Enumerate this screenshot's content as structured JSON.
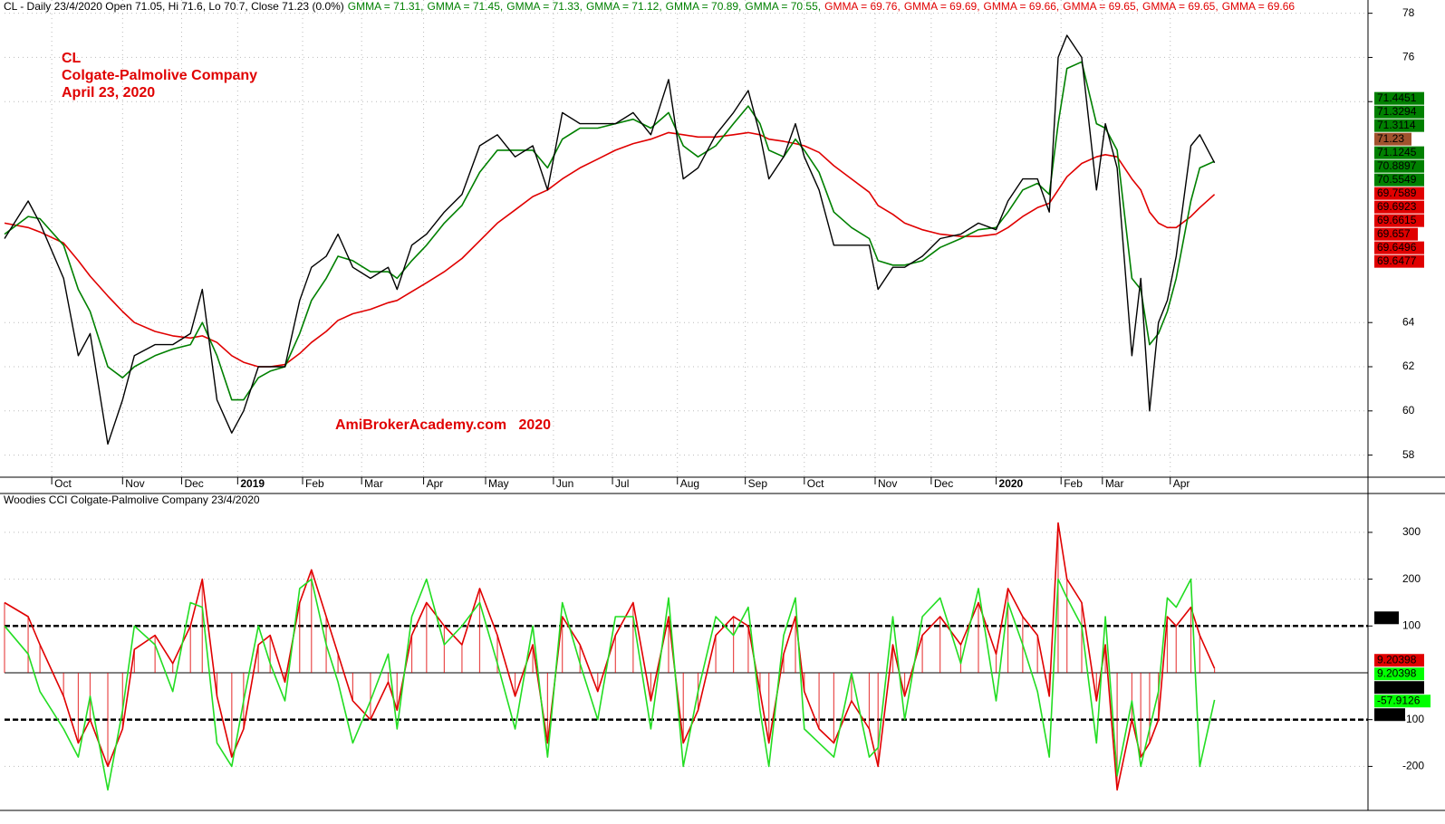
{
  "chart_data": [
    {
      "type": "line",
      "title": "CL - Daily 23/4/2020 Open 71.05, Hi 71.6, Lo 70.7, Close 71.23 (0.0%)",
      "header_items": [
        {
          "text": "GMMA = 71.31,",
          "color": "#008000"
        },
        {
          "text": "GMMA = 71.45,",
          "color": "#008000"
        },
        {
          "text": "GMMA = 71.33,",
          "color": "#008000"
        },
        {
          "text": "GMMA = 71.12,",
          "color": "#008000"
        },
        {
          "text": "GMMA = 70.89,",
          "color": "#008000"
        },
        {
          "text": "GMMA = 70.55,",
          "color": "#008000"
        },
        {
          "text": "GMMA = 69.76,",
          "color": "#e00000"
        },
        {
          "text": "GMMA = 69.69,",
          "color": "#e00000"
        },
        {
          "text": "GMMA = 69.66,",
          "color": "#e00000"
        },
        {
          "text": "GMMA = 69.65,",
          "color": "#e00000"
        },
        {
          "text": "GMMA = 69.65,",
          "color": "#e00000"
        },
        {
          "text": "GMMA = 69.66",
          "color": "#e00000"
        }
      ],
      "annotations": [
        "CL",
        "Colgate-Palmolive Company",
        "April 23, 2020"
      ],
      "watermark": "AmiBrokerAcademy.com   2020",
      "x": [
        0,
        8,
        12,
        20,
        25,
        29,
        35,
        40,
        44,
        51,
        57,
        63,
        67,
        72,
        77,
        81,
        86,
        90,
        95,
        100,
        104,
        109,
        113,
        118,
        124,
        130,
        133,
        138,
        143,
        149,
        155,
        161,
        167,
        173,
        179,
        184,
        189,
        195,
        201,
        207,
        213,
        219,
        225,
        230,
        235,
        241,
        247,
        252,
        256,
        259,
        264,
        268,
        271,
        276,
        281,
        287,
        293,
        296,
        301,
        305,
        311,
        317,
        324,
        330,
        336,
        340,
        345,
        350,
        354,
        357,
        360,
        365,
        370,
        373,
        377,
        382,
        385,
        388,
        391,
        394,
        397,
        402,
        405,
        410
      ],
      "series": [
        {
          "color": "#e00000",
          "values": [
            68.5,
            68.3,
            68.1,
            67.6,
            66.8,
            66.1,
            65.2,
            64.5,
            64,
            63.6,
            63.4,
            63.3,
            63.4,
            63.1,
            62.5,
            62.2,
            62,
            62,
            62.1,
            62.6,
            63.1,
            63.6,
            64.1,
            64.4,
            64.6,
            64.9,
            65,
            65.4,
            65.8,
            66.3,
            66.9,
            67.7,
            68.5,
            69.1,
            69.7,
            70,
            70.5,
            71,
            71.4,
            71.8,
            72.1,
            72.3,
            72.6,
            72.5,
            72.4,
            72.4,
            72.5,
            72.6,
            72.5,
            72.3,
            72.2,
            72.1,
            72,
            71.7,
            71.1,
            70.5,
            69.9,
            69.3,
            68.9,
            68.5,
            68.2,
            68,
            67.9,
            67.9,
            68,
            68.3,
            68.8,
            69.2,
            69.4,
            70,
            70.6,
            71.2,
            71.5,
            71.6,
            71.5,
            70.5,
            70,
            69,
            68.5,
            68.3,
            68.3,
            68.8,
            69.2,
            69.8
          ]
        },
        {
          "color": "#008000",
          "values": [
            68,
            68.8,
            68.7,
            67.5,
            65.5,
            64.5,
            62,
            61.5,
            62,
            62.5,
            62.8,
            63,
            64,
            62.5,
            60.5,
            60.5,
            61.5,
            61.8,
            62,
            63.5,
            65,
            66,
            67,
            66.8,
            66.3,
            66.3,
            66,
            66.8,
            67.5,
            68.5,
            69.3,
            70.8,
            71.8,
            71.8,
            71.8,
            71,
            72.3,
            72.8,
            72.8,
            73,
            73.2,
            72.8,
            73.5,
            72,
            71.5,
            72,
            73,
            73.8,
            73,
            71.8,
            71.5,
            72.3,
            71.8,
            70.8,
            69,
            68.3,
            67.8,
            66.8,
            66.6,
            66.6,
            66.8,
            67.4,
            67.8,
            68.2,
            68.3,
            69,
            70,
            70.3,
            69.8,
            73,
            75.5,
            75.8,
            73,
            72.8,
            71.8,
            66,
            65.5,
            63,
            63.5,
            64.5,
            66,
            69.5,
            71,
            71.3
          ]
        },
        {
          "color": "#000000",
          "values": [
            67.8,
            69.5,
            68.5,
            66,
            62.5,
            63.5,
            58.5,
            60.5,
            62.5,
            63,
            63,
            63.5,
            65.5,
            60.5,
            59,
            60,
            62,
            62,
            62,
            65,
            66.5,
            67,
            68,
            66.5,
            66,
            66.5,
            65.5,
            67.5,
            68,
            69,
            69.8,
            72,
            72.5,
            71.5,
            72,
            70,
            73.5,
            73,
            73,
            73,
            73.5,
            72.5,
            75,
            70.5,
            71,
            72.5,
            73.5,
            74.5,
            72.5,
            70.5,
            71.5,
            73,
            71.5,
            70,
            67.5,
            67.5,
            67.5,
            65.5,
            66.5,
            66.5,
            67,
            67.8,
            68,
            68.5,
            68.2,
            69.5,
            70.5,
            70.5,
            69,
            76,
            77,
            76,
            70,
            73,
            71,
            62.5,
            66,
            60,
            64,
            65,
            67,
            72,
            72.5,
            71.23
          ]
        }
      ],
      "xlim": [
        0,
        462
      ],
      "ylim": [
        57,
        78.6
      ],
      "xticks": [
        {
          "value": 16,
          "label": "Oct"
        },
        {
          "value": 40,
          "label": "Nov"
        },
        {
          "value": 60,
          "label": "Dec"
        },
        {
          "value": 79,
          "label": "2019"
        },
        {
          "value": 101,
          "label": "Feb"
        },
        {
          "value": 121,
          "label": "Mar"
        },
        {
          "value": 142,
          "label": "Apr"
        },
        {
          "value": 163,
          "label": "May"
        },
        {
          "value": 186,
          "label": "Jun"
        },
        {
          "value": 206,
          "label": "Jul"
        },
        {
          "value": 228,
          "label": "Aug"
        },
        {
          "value": 251,
          "label": "Sep"
        },
        {
          "value": 271,
          "label": "Oct"
        },
        {
          "value": 295,
          "label": "Nov"
        },
        {
          "value": 314,
          "label": "Dec"
        },
        {
          "value": 336,
          "label": "2020"
        },
        {
          "value": 358,
          "label": "Feb"
        },
        {
          "value": 372,
          "label": "Mar"
        },
        {
          "value": 395,
          "label": "Apr"
        }
      ],
      "yticks": [
        58,
        60,
        62,
        64,
        74,
        76,
        78
      ],
      "grid": true,
      "value_boxes": [
        {
          "value": 71.4451,
          "color": "#008000"
        },
        {
          "value": 71.3294,
          "color": "#008000"
        },
        {
          "value": 71.3114,
          "color": "#008000"
        },
        {
          "value": 71.23,
          "color": "#a0522d"
        },
        {
          "value": 71.1245,
          "color": "#008000"
        },
        {
          "value": 70.8897,
          "color": "#008000"
        },
        {
          "value": 70.5549,
          "color": "#008000"
        },
        {
          "value": 69.7589,
          "color": "#e00000"
        },
        {
          "value": 69.6923,
          "color": "#e00000"
        },
        {
          "value": 69.6615,
          "color": "#e00000"
        },
        {
          "value": 69.657,
          "color": "#e00000"
        },
        {
          "value": 69.6496,
          "color": "#e00000"
        },
        {
          "value": 69.6477,
          "color": "#e00000"
        }
      ]
    },
    {
      "type": "line",
      "title": "Woodies CCI  Colgate-Palmolive Company 23/4/2020",
      "x": [
        0,
        8,
        12,
        20,
        25,
        29,
        35,
        40,
        44,
        51,
        57,
        63,
        67,
        72,
        77,
        81,
        86,
        90,
        95,
        100,
        104,
        109,
        113,
        118,
        124,
        130,
        133,
        138,
        143,
        149,
        155,
        161,
        167,
        173,
        179,
        184,
        189,
        195,
        201,
        207,
        213,
        219,
        225,
        230,
        235,
        241,
        247,
        252,
        256,
        259,
        264,
        268,
        271,
        276,
        281,
        287,
        293,
        296,
        301,
        305,
        311,
        317,
        324,
        330,
        336,
        340,
        345,
        350,
        354,
        357,
        360,
        365,
        370,
        373,
        377,
        382,
        385,
        388,
        391,
        394,
        397,
        402,
        405,
        410
      ],
      "series": [
        {
          "color": "#e00000",
          "histogram": true,
          "values": [
            150,
            120,
            60,
            -50,
            -150,
            -100,
            -200,
            -120,
            50,
            80,
            20,
            100,
            200,
            -50,
            -180,
            -120,
            60,
            80,
            -20,
            150,
            220,
            120,
            40,
            -60,
            -100,
            -20,
            -80,
            80,
            150,
            100,
            60,
            180,
            80,
            -50,
            60,
            -150,
            120,
            60,
            -40,
            80,
            150,
            -60,
            120,
            -150,
            -80,
            80,
            120,
            100,
            -40,
            -150,
            40,
            120,
            -40,
            -120,
            -150,
            -60,
            -120,
            -200,
            60,
            -50,
            80,
            120,
            60,
            150,
            40,
            180,
            120,
            80,
            -50,
            320,
            200,
            150,
            -60,
            60,
            -250,
            -100,
            -180,
            -150,
            -100,
            120,
            100,
            140,
            80,
            9.2
          ]
        },
        {
          "color": "#22dd22",
          "values": [
            100,
            40,
            -40,
            -120,
            -180,
            -50,
            -250,
            -80,
            100,
            60,
            -40,
            150,
            140,
            -150,
            -200,
            -60,
            100,
            20,
            -60,
            180,
            200,
            60,
            -20,
            -150,
            -60,
            40,
            -120,
            120,
            200,
            60,
            100,
            150,
            20,
            -120,
            100,
            -180,
            150,
            20,
            -100,
            120,
            120,
            -120,
            160,
            -200,
            -40,
            120,
            80,
            140,
            -80,
            -200,
            80,
            160,
            -120,
            -150,
            -180,
            0,
            -180,
            -160,
            120,
            -100,
            120,
            160,
            20,
            180,
            -60,
            150,
            60,
            -40,
            -180,
            200,
            160,
            100,
            -150,
            120,
            -220,
            -60,
            -200,
            -120,
            -40,
            160,
            140,
            200,
            -200,
            -57.9126
          ]
        }
      ],
      "xlim": [
        0,
        462
      ],
      "ylim": [
        -294,
        383
      ],
      "yticks": [
        -200,
        -100,
        100,
        200,
        300
      ],
      "levels": [
        100,
        0,
        -100
      ],
      "grid": true,
      "value_boxes": [
        {
          "value": 100,
          "color": "#000000"
        },
        {
          "value": 9.20398,
          "color": "#e00000"
        },
        {
          "value": 9.20398,
          "color": "#00ff00"
        },
        {
          "value": 0,
          "label": "0.00000",
          "color": "#000000"
        },
        {
          "value": -57.9126,
          "color": "#00ff00"
        },
        {
          "value": -100,
          "color": "#000000"
        }
      ]
    }
  ]
}
